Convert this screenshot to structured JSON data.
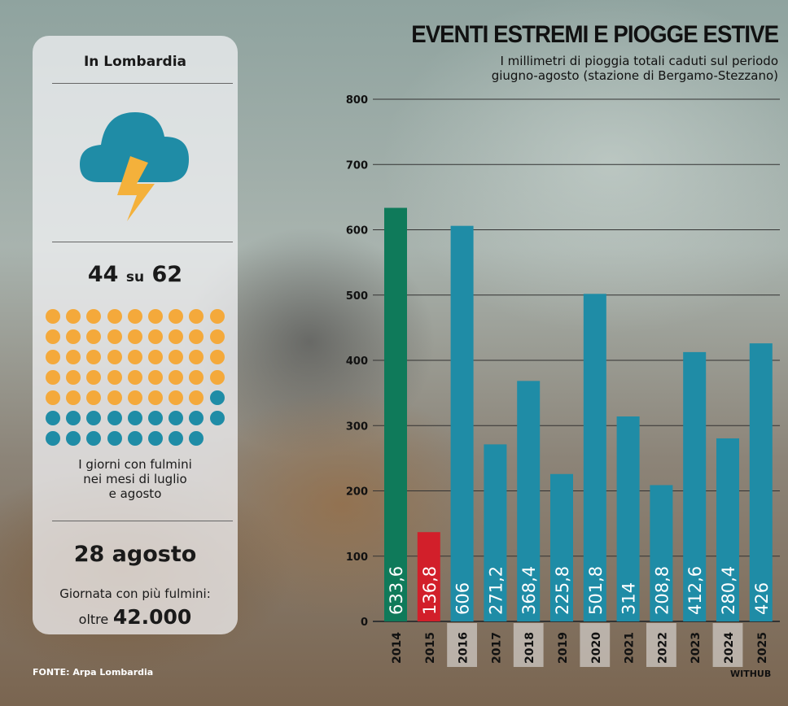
{
  "panel": {
    "region": "In Lombardia",
    "days_count": "44",
    "days_su": "su",
    "days_total": "62",
    "days_desc": [
      "I giorni con fulmini",
      "nei mesi di luglio",
      "e agosto"
    ],
    "date": "28 agosto",
    "date_desc": "Giornata con più fulmini:",
    "oltre": "oltre",
    "record": "42.000",
    "dots": {
      "with_lightning": 44,
      "total": 62,
      "color_with": "#f4a93b",
      "color_without": "#1f8ca6"
    }
  },
  "source": "FONTE: Arpa Lombardia",
  "credit": "WITHUB",
  "chart_data": {
    "type": "bar",
    "title": "EVENTI ESTREMI E PIOGGE ESTIVE",
    "subtitle": [
      "I millimetri di pioggia totali caduti sul periodo",
      "giugno-agosto (stazione di Bergamo-Stezzano)"
    ],
    "categories": [
      "2014",
      "2015",
      "2016",
      "2017",
      "2018",
      "2019",
      "2020",
      "2021",
      "2022",
      "2023",
      "2024",
      "2025"
    ],
    "values": [
      633.6,
      136.8,
      606,
      271.2,
      368.4,
      225.8,
      501.8,
      314,
      208.8,
      412.6,
      280.4,
      426
    ],
    "labels": [
      "633,6",
      "136,8",
      "606",
      "271,2",
      "368,4",
      "225,8",
      "501,8",
      "314",
      "208,8",
      "412,6",
      "280,4",
      "426"
    ],
    "colors": [
      "#0f7a5a",
      "#d21f2a",
      "#1f8ca6",
      "#1f8ca6",
      "#1f8ca6",
      "#1f8ca6",
      "#1f8ca6",
      "#1f8ca6",
      "#1f8ca6",
      "#1f8ca6",
      "#1f8ca6",
      "#1f8ca6"
    ],
    "ylim": [
      0,
      800
    ],
    "yticks": [
      "0",
      "100",
      "200",
      "300",
      "400",
      "500",
      "600",
      "700",
      "800"
    ],
    "grid": true,
    "xlabel": "",
    "ylabel": ""
  }
}
